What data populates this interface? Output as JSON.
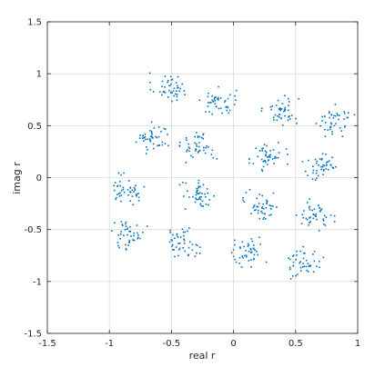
{
  "chart_data": {
    "type": "scatter",
    "title": "",
    "xlabel": "real r",
    "ylabel": "imag r",
    "xlim": [
      -1.5,
      1
    ],
    "ylim": [
      -1.5,
      1.5
    ],
    "xticks": [
      -1.5,
      -1,
      -0.5,
      0,
      0.5,
      1
    ],
    "xtick_labels": [
      "-1.5",
      "-1",
      "-0.5",
      "0",
      "0.5",
      "1"
    ],
    "yticks": [
      -1.5,
      -1,
      -0.5,
      0,
      0.5,
      1,
      1.5
    ],
    "ytick_labels": [
      "-1.5",
      "-1",
      "-0.5",
      "0",
      "0.5",
      "1",
      "1.5"
    ],
    "grid": true,
    "legend": "none",
    "marker_color": "#0072BD",
    "series": [
      {
        "points_per_cluster": 45,
        "cluster_spread": 0.07,
        "cluster_centers": [
          [
            -0.52,
            0.87
          ],
          [
            -0.12,
            0.72
          ],
          [
            0.38,
            0.65
          ],
          [
            0.82,
            0.55
          ],
          [
            -0.65,
            0.38
          ],
          [
            -0.28,
            0.3
          ],
          [
            0.28,
            0.2
          ],
          [
            0.71,
            0.1
          ],
          [
            -0.85,
            -0.11
          ],
          [
            -0.28,
            -0.18
          ],
          [
            0.23,
            -0.27
          ],
          [
            0.66,
            -0.36
          ],
          [
            -0.85,
            -0.54
          ],
          [
            -0.42,
            -0.62
          ],
          [
            0.11,
            -0.73
          ],
          [
            0.57,
            -0.82
          ]
        ]
      }
    ]
  }
}
